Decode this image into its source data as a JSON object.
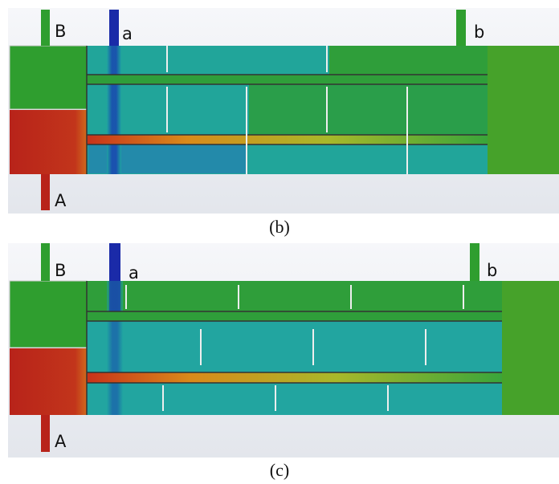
{
  "panels": [
    {
      "labels": {
        "B": "B",
        "a": "a",
        "b": "b",
        "A": "A"
      },
      "caption": "(b)"
    },
    {
      "labels": {
        "B": "B",
        "a": "a",
        "b": "b",
        "A": "A"
      },
      "caption": "(c)"
    }
  ]
}
